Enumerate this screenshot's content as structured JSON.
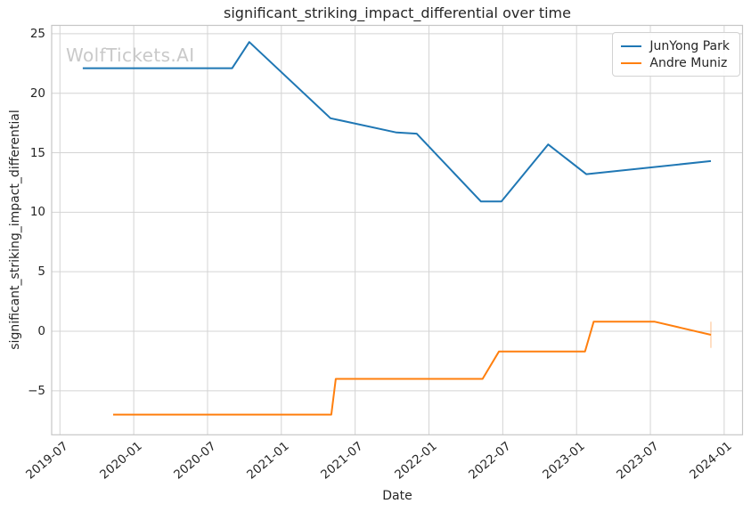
{
  "watermark": "WolfTickets.AI",
  "colors": {
    "series_blue": "#1f77b4",
    "series_orange": "#ff7f0e",
    "grid": "#d4d4d4",
    "spine": "#c6c6c6",
    "text": "#262626",
    "watermark": "#c9c9c9",
    "legend_border": "#d2d2d2"
  },
  "chart_data": {
    "type": "line",
    "title": "significant_striking_impact_differential over time",
    "xlabel": "Date",
    "ylabel": "significant_striking_impact_differential",
    "grid": true,
    "legend_position": "upper-right",
    "x_ticks": [
      "2019-07",
      "2020-01",
      "2020-07",
      "2021-01",
      "2021-07",
      "2022-01",
      "2022-07",
      "2023-01",
      "2023-07",
      "2024-01"
    ],
    "y_ticks": [
      25,
      20,
      15,
      10,
      5,
      0,
      -5
    ],
    "xlim": [
      "2019-06-11",
      "2024-02-16"
    ],
    "ylim": [
      -8.7,
      25.7
    ],
    "series": [
      {
        "name": "JunYong Park",
        "color": "#1f77b4",
        "points": [
          [
            "2019-08-27",
            22.1
          ],
          [
            "2020-09-01",
            22.1
          ],
          [
            "2020-10-13",
            24.3
          ],
          [
            "2021-05-01",
            17.9
          ],
          [
            "2021-10-12",
            16.7
          ],
          [
            "2021-12-01",
            16.6
          ],
          [
            "2022-05-08",
            10.9
          ],
          [
            "2022-06-28",
            10.9
          ],
          [
            "2022-10-22",
            15.7
          ],
          [
            "2023-01-25",
            13.2
          ],
          [
            "2023-11-29",
            14.3
          ]
        ]
      },
      {
        "name": "Andre Muniz",
        "color": "#ff7f0e",
        "points": [
          [
            "2019-11-11",
            -7.0
          ],
          [
            "2021-05-03",
            -7.0
          ],
          [
            "2021-05-14",
            -4.0
          ],
          [
            "2022-05-12",
            -4.0
          ],
          [
            "2022-06-22",
            -1.7
          ],
          [
            "2023-01-22",
            -1.7
          ],
          [
            "2023-02-13",
            0.8
          ],
          [
            "2023-07-12",
            0.8
          ],
          [
            "2023-11-29",
            -0.3
          ]
        ]
      }
    ],
    "error_bar": {
      "series": "Andre Muniz",
      "x": "2023-11-29",
      "y_low": -1.4,
      "y_high": 0.8,
      "opacity": 0.3
    }
  }
}
